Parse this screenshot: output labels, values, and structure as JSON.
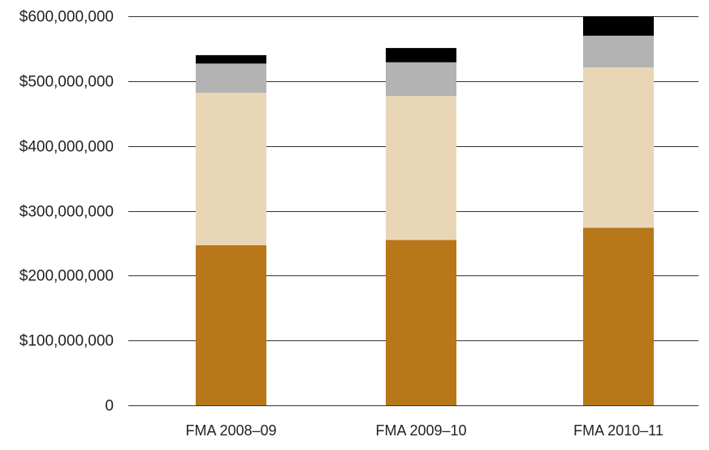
{
  "chart_data": {
    "type": "bar",
    "stacked": true,
    "categories": [
      "FMA 2008–09",
      "FMA 2009–10",
      "FMA 2010–11"
    ],
    "series": [
      {
        "color": "#b87718",
        "values": [
          247000000,
          255000000,
          274000000
        ]
      },
      {
        "color": "#e8d6b7",
        "values": [
          235000000,
          222000000,
          247000000
        ]
      },
      {
        "color": "#b3b3b3",
        "values": [
          45000000,
          52000000,
          49000000
        ]
      },
      {
        "color": "#000000",
        "values": [
          13000000,
          22000000,
          30000000
        ]
      }
    ],
    "ylim": [
      0,
      600000000
    ],
    "yticks": [
      0,
      100000000,
      200000000,
      300000000,
      400000000,
      500000000,
      600000000
    ],
    "ytick_labels": [
      "0",
      "$100,000,000",
      "$200,000,000",
      "$300,000,000",
      "$400,000,000",
      "$500,000,000",
      "$600,000,000"
    ],
    "grid": true,
    "legend": "none",
    "title": "",
    "xlabel": "",
    "ylabel": ""
  }
}
